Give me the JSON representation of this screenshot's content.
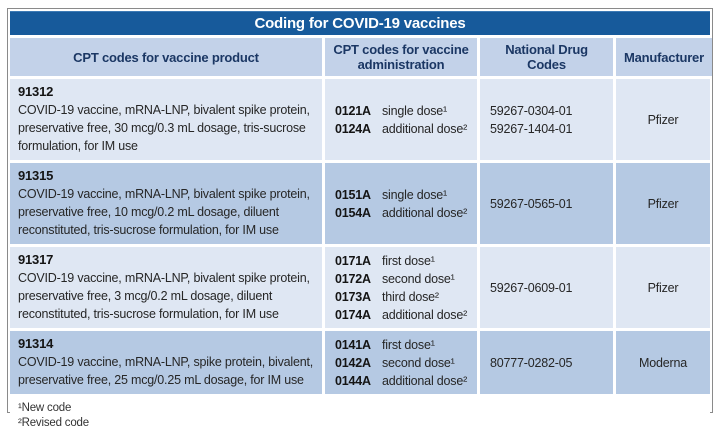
{
  "title": "Coding for COVID-19 vaccines",
  "colors": {
    "title_bg": "#175a9b",
    "header_bg": "#c3d2e9",
    "row_light": "#dfe7f3",
    "row_dark": "#b5c9e3",
    "header_text": "#1b3764",
    "frame_border": "#8a8a8a"
  },
  "headers": {
    "product": "CPT codes for vaccine product",
    "administration": "CPT codes for vaccine administration",
    "ndc": "National Drug Codes",
    "manufacturer": "Manufacturer"
  },
  "rows": [
    {
      "code": "91312",
      "description": "COVID-19 vaccine, mRNA-LNP, bivalent spike protein,\npreservative free, 30 mcg/0.3 mL dosage, tris-sucrose\nformulation, for IM use",
      "admin": [
        {
          "code": "0121A",
          "label": "single dose¹"
        },
        {
          "code": "0124A",
          "label": "additional dose²"
        }
      ],
      "ndc": "59267-0304-01\n59267-1404-01",
      "manufacturer": "Pfizer"
    },
    {
      "code": "91315",
      "description": "COVID-19 vaccine, mRNA-LNP, bivalent spike protein,\npreservative free, 10 mcg/0.2 mL dosage, diluent\nreconstituted, tris-sucrose formulation, for IM use",
      "admin": [
        {
          "code": "0151A",
          "label": "single dose¹"
        },
        {
          "code": "0154A",
          "label": "additional dose²"
        }
      ],
      "ndc": "59267-0565-01",
      "manufacturer": "Pfizer"
    },
    {
      "code": "91317",
      "description": "COVID-19 vaccine, mRNA-LNP, bivalent spike protein,\npreservative free, 3 mcg/0.2 mL dosage, diluent\nreconstituted, tris-sucrose formulation, for IM use",
      "admin": [
        {
          "code": "0171A",
          "label": "first dose¹"
        },
        {
          "code": "0172A",
          "label": "second dose¹"
        },
        {
          "code": "0173A",
          "label": "third dose²"
        },
        {
          "code": "0174A",
          "label": "additional dose²"
        }
      ],
      "ndc": "59267-0609-01",
      "manufacturer": "Pfizer"
    },
    {
      "code": "91314",
      "description": "COVID-19 vaccine, mRNA-LNP, spike protein, bivalent,\npreservative free, 25 mcg/0.25 mL dosage, for IM use",
      "admin": [
        {
          "code": "0141A",
          "label": "first dose¹"
        },
        {
          "code": "0142A",
          "label": "second dose¹"
        },
        {
          "code": "0144A",
          "label": "additional dose²"
        }
      ],
      "ndc": "80777-0282-05",
      "manufacturer": "Moderna"
    }
  ],
  "footnotes": {
    "new_code": "¹New code",
    "revised_code": "²Revised code"
  }
}
